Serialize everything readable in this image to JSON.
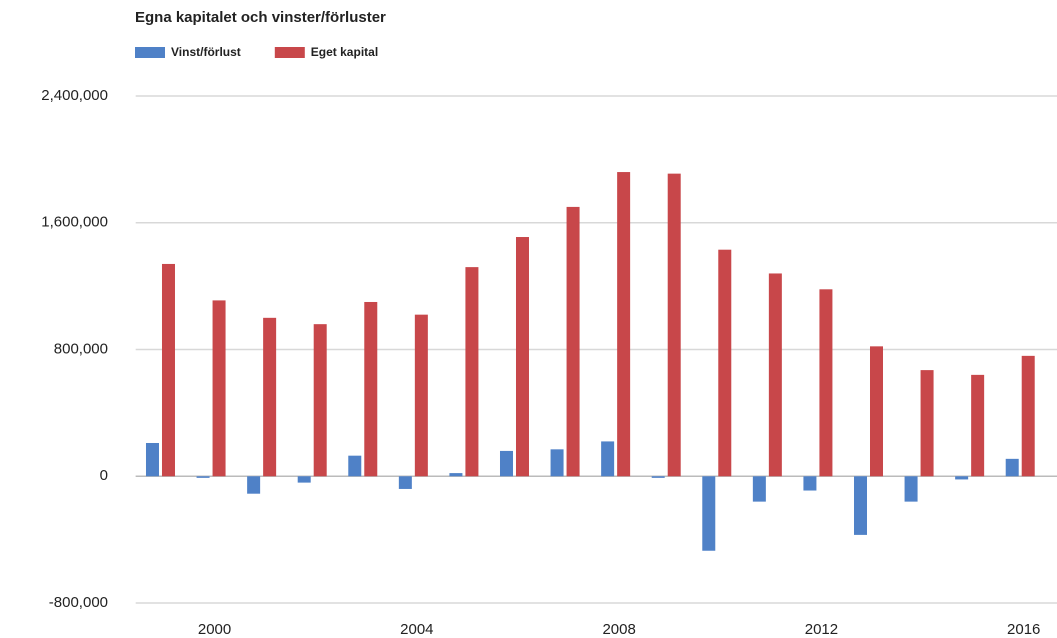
{
  "chart_data": {
    "type": "bar",
    "title": "Egna kapitalet och vinster/förluster",
    "categories": [
      null,
      "2000",
      null,
      null,
      null,
      "2004",
      null,
      null,
      null,
      "2008",
      null,
      null,
      null,
      "2012",
      null,
      null,
      null,
      "2016"
    ],
    "series": [
      {
        "name": "Vinst/förlust",
        "color": "#4f81c7",
        "values": [
          210000,
          -10000,
          -110000,
          -40000,
          130000,
          -80000,
          20000,
          160000,
          170000,
          220000,
          -10000,
          -470000,
          -160000,
          -90000,
          -370000,
          -160000,
          -20000,
          110000
        ]
      },
      {
        "name": "Eget kapital",
        "color": "#c8474a",
        "values": [
          1340000,
          1110000,
          1000000,
          960000,
          1100000,
          1020000,
          1320000,
          1510000,
          1700000,
          1920000,
          1910000,
          1430000,
          1280000,
          1180000,
          820000,
          670000,
          640000,
          760000
        ]
      }
    ],
    "ylim": [
      -900000,
      2400000
    ],
    "yticks": [
      {
        "value": -800000,
        "label": "-800,000"
      },
      0,
      {
        "value": 800000,
        "label": "800,000"
      },
      {
        "value": 1600000,
        "label": "1,600,000"
      },
      {
        "value": 2400000,
        "label": "2,400,000"
      }
    ],
    "grid": true,
    "legend": "top"
  }
}
